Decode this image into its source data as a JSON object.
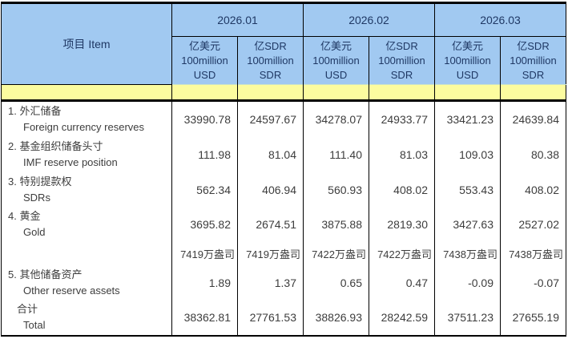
{
  "table": {
    "item_header": "项目 Item",
    "periods": [
      "2026.01",
      "2026.02",
      "2026.03"
    ],
    "unit_usd": [
      "亿美元",
      "100million",
      "USD"
    ],
    "unit_sdr": [
      "亿SDR",
      "100million",
      "SDR"
    ],
    "rows": [
      {
        "zh": "1. 外汇储备",
        "en": "Foreign currency reserves",
        "values": [
          "33990.78",
          "24597.67",
          "34278.07",
          "24933.77",
          "33421.23",
          "24639.84"
        ]
      },
      {
        "zh": "2. 基金组织储备头寸",
        "en": "IMF reserve position",
        "values": [
          "111.98",
          "81.04",
          "111.40",
          "81.03",
          "109.03",
          "80.38"
        ]
      },
      {
        "zh": "3. 特别提款权",
        "en": "SDRs",
        "values": [
          "562.34",
          "406.94",
          "560.93",
          "408.02",
          "553.43",
          "408.02"
        ]
      },
      {
        "zh": "4. 黄金",
        "en": "Gold",
        "values": [
          "3695.82",
          "2674.51",
          "3875.88",
          "2819.30",
          "3427.63",
          "2527.02"
        ]
      },
      {
        "zh": "",
        "en": "",
        "values": [
          "7419万盎司",
          "7419万盎司",
          "7422万盎司",
          "7422万盎司",
          "7438万盎司",
          "7438万盎司"
        ]
      },
      {
        "zh": "5. 其他储备资产",
        "en": "Other reserve assets",
        "values": [
          "1.89",
          "1.37",
          "0.65",
          "0.47",
          "-0.09",
          "-0.07"
        ]
      },
      {
        "zh": "合计",
        "en": "Total",
        "values": [
          "38362.81",
          "27761.53",
          "38826.93",
          "28242.59",
          "37511.23",
          "27655.19"
        ]
      }
    ],
    "colors": {
      "header_bg": "#A1C9F1",
      "band_bg": "#FCFC9F",
      "header_text": "#1F3864",
      "body_text": "#3D3D3D",
      "border": "#000000"
    }
  }
}
